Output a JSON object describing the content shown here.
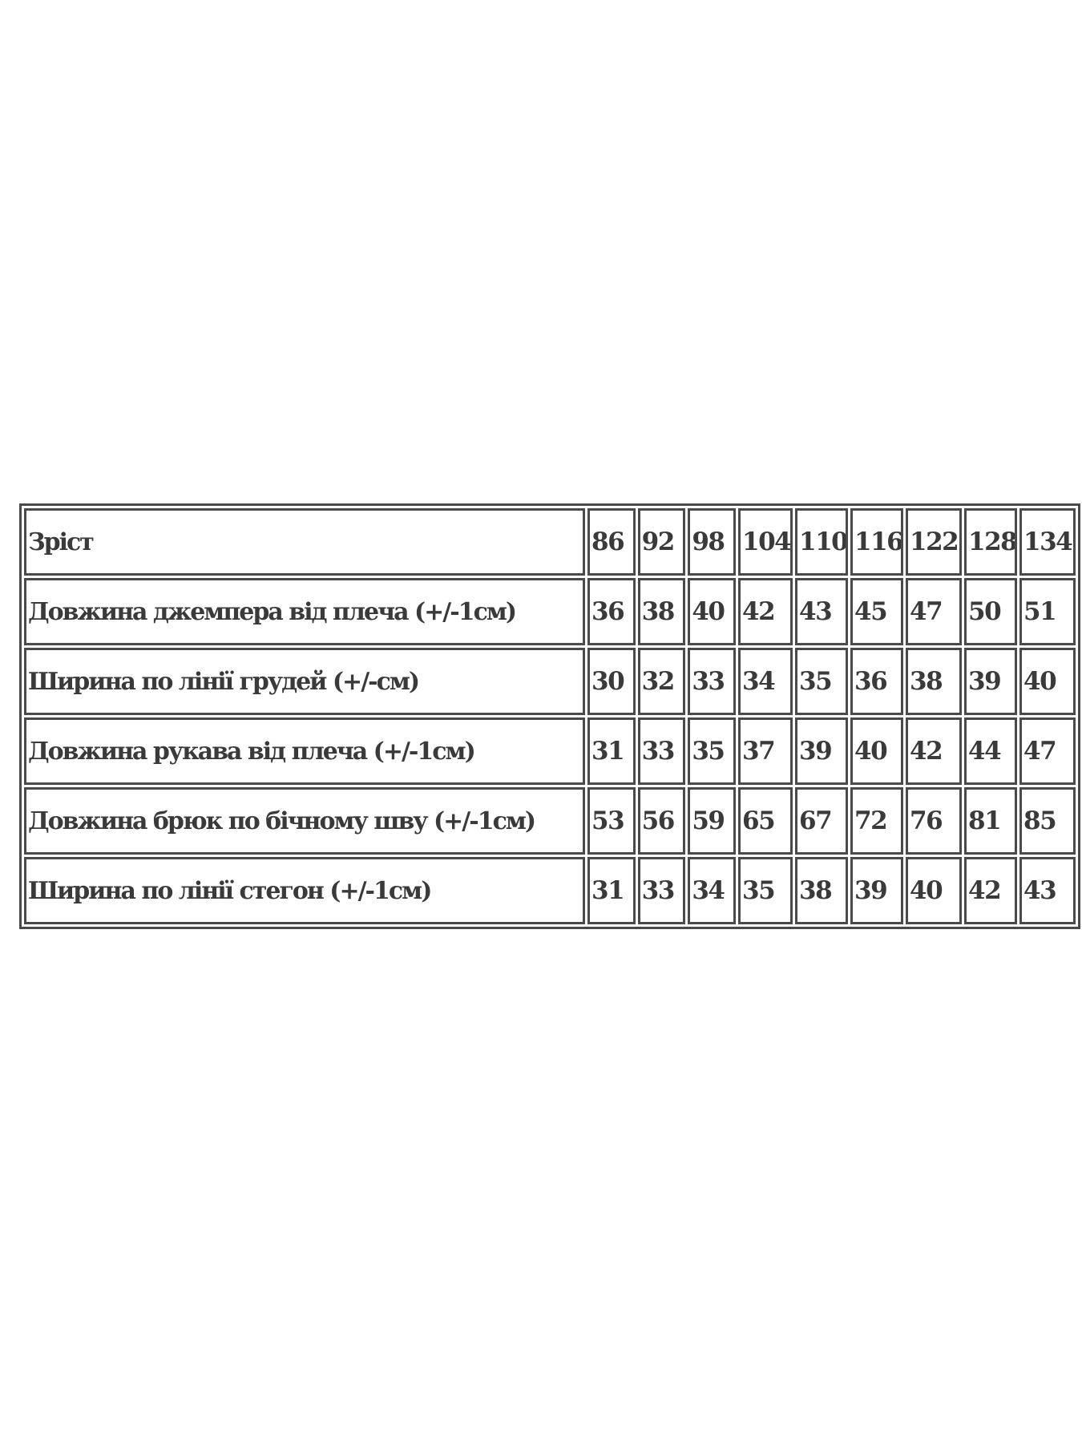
{
  "table": {
    "header": {
      "label": "Зріст",
      "values": [
        "86",
        "92",
        "98",
        "104",
        "110",
        "116",
        "122",
        "128",
        "134"
      ]
    },
    "rows": [
      {
        "label": "Довжина джемпера від плеча (+/-1см)",
        "values": [
          "36",
          "38",
          "40",
          "42",
          "43",
          "45",
          "47",
          "50",
          "51"
        ]
      },
      {
        "label": "Ширина по лінії грудей (+/-см)",
        "values": [
          "30",
          "32",
          "33",
          "34",
          "35",
          "36",
          "38",
          "39",
          "40"
        ]
      },
      {
        "label": "Довжина рукава від плеча (+/-1см)",
        "values": [
          "31",
          "33",
          "35",
          "37",
          "39",
          "40",
          "42",
          "44",
          "47"
        ]
      },
      {
        "label": "Довжина брюк по бічному шву (+/-1см)",
        "values": [
          "53",
          "56",
          "59",
          "65",
          "67",
          "72",
          "76",
          "81",
          "85"
        ]
      },
      {
        "label": "Ширина по лінії стегон (+/-1см)",
        "values": [
          "31",
          "33",
          "34",
          "35",
          "38",
          "39",
          "40",
          "42",
          "43"
        ]
      }
    ]
  }
}
